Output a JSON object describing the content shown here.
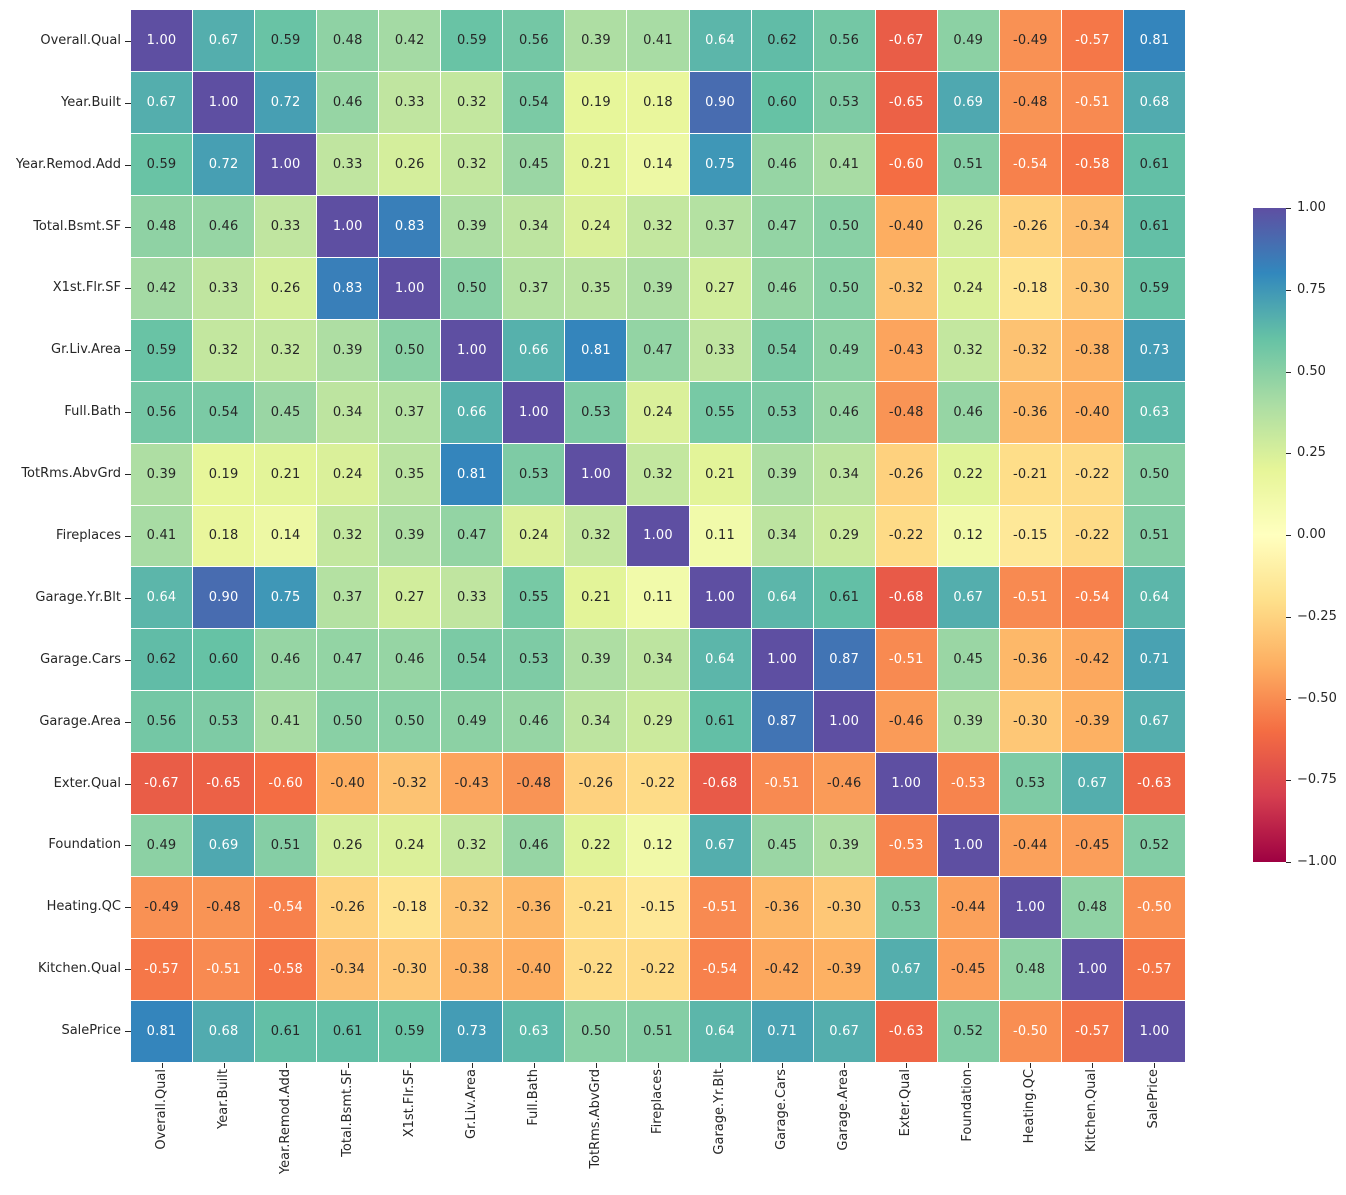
{
  "chart_data": {
    "type": "heatmap",
    "title": "",
    "variables": [
      "Overall.Qual",
      "Year.Built",
      "Year.Remod.Add",
      "Total.Bsmt.SF",
      "X1st.Flr.SF",
      "Gr.Liv.Area",
      "Full.Bath",
      "TotRms.AbvGrd",
      "Fireplaces",
      "Garage.Yr.Blt",
      "Garage.Cars",
      "Garage.Area",
      "Exter.Qual",
      "Foundation",
      "Heating.QC",
      "Kitchen.Qual",
      "SalePrice"
    ],
    "matrix": [
      [
        1.0,
        0.67,
        0.59,
        0.48,
        0.42,
        0.59,
        0.56,
        0.39,
        0.41,
        0.64,
        0.62,
        0.56,
        -0.67,
        0.49,
        -0.49,
        -0.57,
        0.81
      ],
      [
        0.67,
        1.0,
        0.72,
        0.46,
        0.33,
        0.32,
        0.54,
        0.19,
        0.18,
        0.9,
        0.6,
        0.53,
        -0.65,
        0.69,
        -0.48,
        -0.51,
        0.68
      ],
      [
        0.59,
        0.72,
        1.0,
        0.33,
        0.26,
        0.32,
        0.45,
        0.21,
        0.14,
        0.75,
        0.46,
        0.41,
        -0.6,
        0.51,
        -0.54,
        -0.58,
        0.61
      ],
      [
        0.48,
        0.46,
        0.33,
        1.0,
        0.83,
        0.39,
        0.34,
        0.24,
        0.32,
        0.37,
        0.47,
        0.5,
        -0.4,
        0.26,
        -0.26,
        -0.34,
        0.61
      ],
      [
        0.42,
        0.33,
        0.26,
        0.83,
        1.0,
        0.5,
        0.37,
        0.35,
        0.39,
        0.27,
        0.46,
        0.5,
        -0.32,
        0.24,
        -0.18,
        -0.3,
        0.59
      ],
      [
        0.59,
        0.32,
        0.32,
        0.39,
        0.5,
        1.0,
        0.66,
        0.81,
        0.47,
        0.33,
        0.54,
        0.49,
        -0.43,
        0.32,
        -0.32,
        -0.38,
        0.73
      ],
      [
        0.56,
        0.54,
        0.45,
        0.34,
        0.37,
        0.66,
        1.0,
        0.53,
        0.24,
        0.55,
        0.53,
        0.46,
        -0.48,
        0.46,
        -0.36,
        -0.4,
        0.63
      ],
      [
        0.39,
        0.19,
        0.21,
        0.24,
        0.35,
        0.81,
        0.53,
        1.0,
        0.32,
        0.21,
        0.39,
        0.34,
        -0.26,
        0.22,
        -0.21,
        -0.22,
        0.5
      ],
      [
        0.41,
        0.18,
        0.14,
        0.32,
        0.39,
        0.47,
        0.24,
        0.32,
        1.0,
        0.11,
        0.34,
        0.29,
        -0.22,
        0.12,
        -0.15,
        -0.22,
        0.51
      ],
      [
        0.64,
        0.9,
        0.75,
        0.37,
        0.27,
        0.33,
        0.55,
        0.21,
        0.11,
        1.0,
        0.64,
        0.61,
        -0.68,
        0.67,
        -0.51,
        -0.54,
        0.64
      ],
      [
        0.62,
        0.6,
        0.46,
        0.47,
        0.46,
        0.54,
        0.53,
        0.39,
        0.34,
        0.64,
        1.0,
        0.87,
        -0.51,
        0.45,
        -0.36,
        -0.42,
        0.71
      ],
      [
        0.56,
        0.53,
        0.41,
        0.5,
        0.5,
        0.49,
        0.46,
        0.34,
        0.29,
        0.61,
        0.87,
        1.0,
        -0.46,
        0.39,
        -0.3,
        -0.39,
        0.67
      ],
      [
        -0.67,
        -0.65,
        -0.6,
        -0.4,
        -0.32,
        -0.43,
        -0.48,
        -0.26,
        -0.22,
        -0.68,
        -0.51,
        -0.46,
        1.0,
        -0.53,
        0.53,
        0.67,
        -0.63
      ],
      [
        0.49,
        0.69,
        0.51,
        0.26,
        0.24,
        0.32,
        0.46,
        0.22,
        0.12,
        0.67,
        0.45,
        0.39,
        -0.53,
        1.0,
        -0.44,
        -0.45,
        0.52
      ],
      [
        -0.49,
        -0.48,
        -0.54,
        -0.26,
        -0.18,
        -0.32,
        -0.36,
        -0.21,
        -0.15,
        -0.51,
        -0.36,
        -0.3,
        0.53,
        -0.44,
        1.0,
        0.48,
        -0.5
      ],
      [
        -0.57,
        -0.51,
        -0.58,
        -0.34,
        -0.3,
        -0.38,
        -0.4,
        -0.22,
        -0.22,
        -0.54,
        -0.42,
        -0.39,
        0.67,
        -0.45,
        0.48,
        1.0,
        -0.57
      ],
      [
        0.81,
        0.68,
        0.61,
        0.61,
        0.59,
        0.73,
        0.63,
        0.5,
        0.51,
        0.64,
        0.71,
        0.67,
        -0.63,
        0.52,
        -0.5,
        -0.57,
        1.0
      ]
    ],
    "value_decimals": 2,
    "colormap": {
      "name": "Spectral",
      "vmin": -1,
      "vmax": 1,
      "anchors": [
        "#9e0142",
        "#d53e4f",
        "#f46d43",
        "#fdae61",
        "#fee08b",
        "#ffffbf",
        "#e6f598",
        "#abdda4",
        "#66c2a5",
        "#3288bd",
        "#5e4fa2"
      ]
    },
    "annotation_text_colors": {
      "dark": "#262626",
      "light": "#ffffff"
    },
    "colorbar_ticks": [
      "1.00",
      "0.75",
      "0.50",
      "0.25",
      "0.00",
      "−0.25",
      "−0.50",
      "−0.75",
      "−1.00"
    ],
    "legend_position": "right",
    "grid": false,
    "cell_border_color": "#ffffff"
  }
}
